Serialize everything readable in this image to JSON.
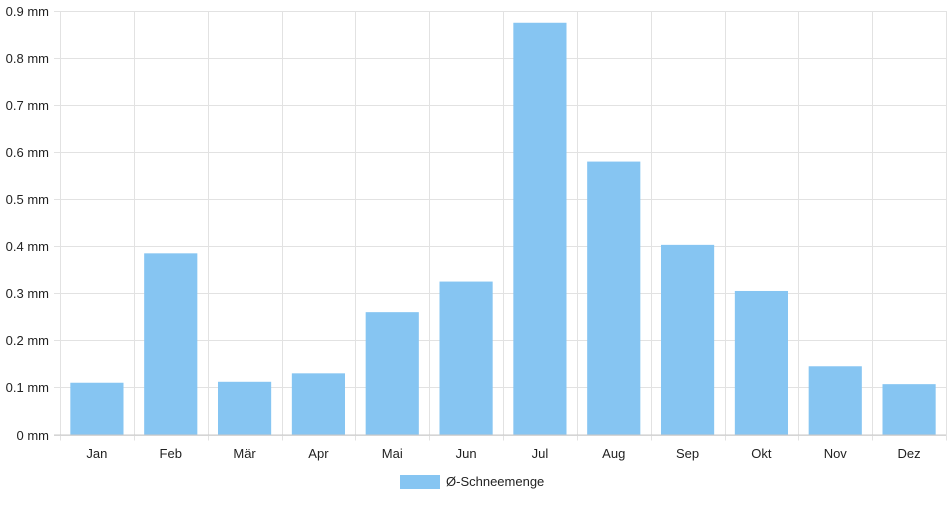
{
  "chart_data": {
    "type": "bar",
    "categories": [
      "Jan",
      "Feb",
      "Mär",
      "Apr",
      "Mai",
      "Jun",
      "Jul",
      "Aug",
      "Sep",
      "Okt",
      "Nov",
      "Dez"
    ],
    "series": [
      {
        "name": "Ø-Schneemenge",
        "values": [
          0.11,
          0.385,
          0.112,
          0.13,
          0.26,
          0.325,
          0.875,
          0.58,
          0.403,
          0.305,
          0.145,
          0.107
        ]
      }
    ],
    "y_ticks": [
      "0 mm",
      "0.1 mm",
      "0.2 mm",
      "0.3 mm",
      "0.4 mm",
      "0.5 mm",
      "0.6 mm",
      "0.7 mm",
      "0.8 mm",
      "0.9 mm"
    ],
    "ylim": [
      0,
      0.9
    ],
    "grid": true,
    "legend_position": "bottom",
    "colors": {
      "bar_fill": "#86c5f2",
      "grid": "#e2e2e2",
      "axis": "#c8c8c8"
    }
  }
}
